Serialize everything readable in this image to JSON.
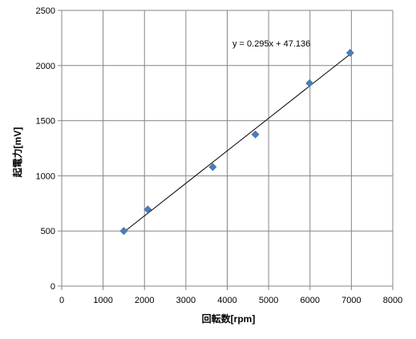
{
  "chart_data": {
    "type": "scatter",
    "title": "",
    "xlabel": "回転数[rpm]",
    "ylabel": "起電力[mV]",
    "xlim": [
      0,
      8000
    ],
    "ylim": [
      0,
      2500
    ],
    "x_ticks": [
      0,
      1000,
      2000,
      3000,
      4000,
      5000,
      6000,
      7000,
      8000
    ],
    "y_ticks": [
      0,
      500,
      1000,
      1500,
      2000,
      2500
    ],
    "grid": true,
    "legend": "none",
    "series": [
      {
        "marker": "diamond",
        "color": "#4a7ebb",
        "x": [
          1500,
          2080,
          3650,
          4680,
          5990,
          6970
        ],
        "y": [
          500,
          695,
          1080,
          1375,
          1840,
          2115
        ]
      }
    ],
    "trendline": {
      "type": "linear",
      "slope": 0.295,
      "intercept": 47.136,
      "x_range": [
        1500,
        6970
      ],
      "color": "#000000",
      "equation_label": "y = 0.295x + 47.136"
    }
  }
}
